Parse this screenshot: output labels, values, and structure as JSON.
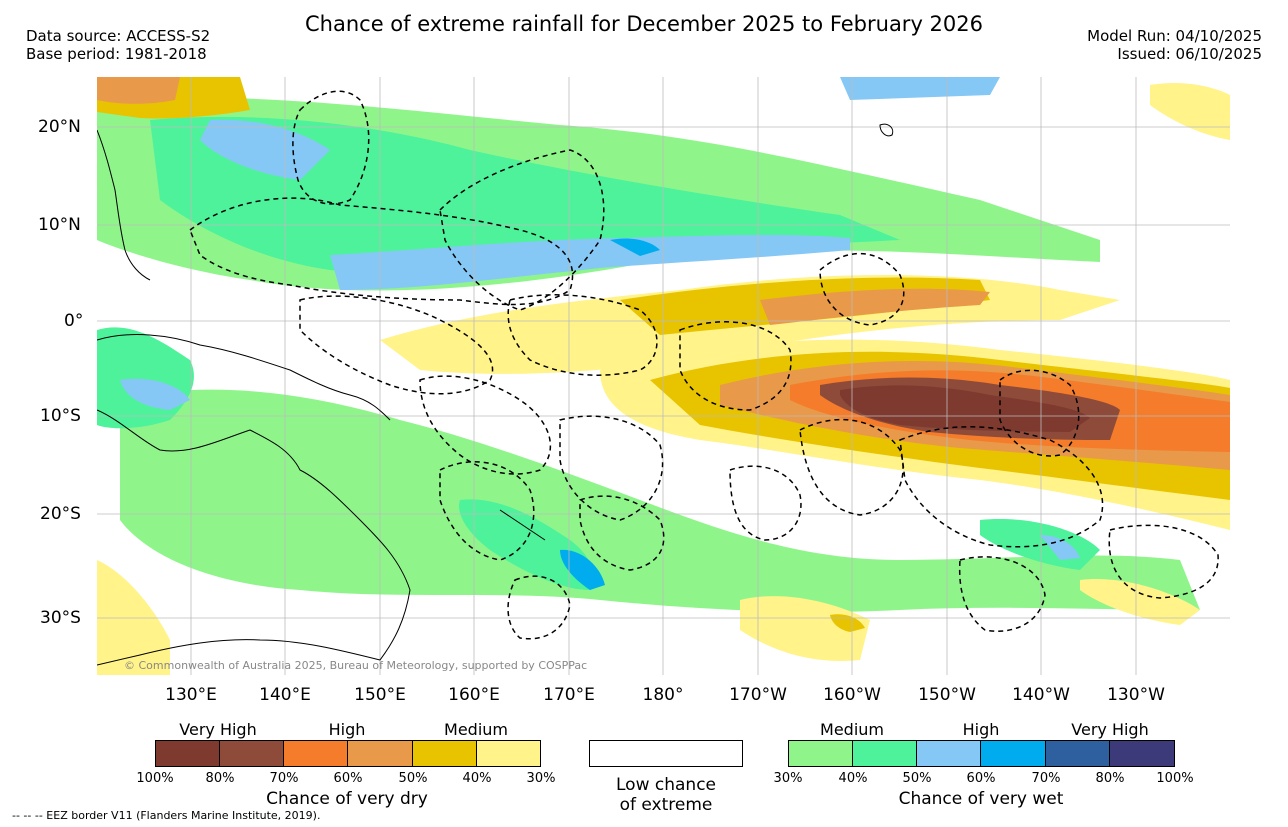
{
  "title": "Chance of extreme rainfall for December 2025 to February 2026",
  "meta_left": {
    "source": "Data source: ACCESS-S2",
    "base": "Base period: 1981-2018"
  },
  "meta_right": {
    "model_run": "Model Run: 04/10/2025",
    "issued": "Issued: 06/10/2025"
  },
  "map": {
    "region": "Western and central Pacific Ocean",
    "lon_labels": [
      "130°E",
      "140°E",
      "150°E",
      "160°E",
      "170°E",
      "180°",
      "170°W",
      "160°W",
      "150°W",
      "140°W",
      "130°W"
    ],
    "lat_labels": [
      "20°N",
      "10°N",
      "0°",
      "10°S",
      "20°S",
      "30°S"
    ],
    "copyright": "© Commonwealth of Australia 2025, Bureau of Meteorology, supported by COSPPac"
  },
  "legend": {
    "dry": {
      "title": "Chance of very dry",
      "categories": [
        "Very High",
        "High",
        "Medium"
      ],
      "ticks": [
        "100%",
        "80%",
        "70%",
        "60%",
        "50%",
        "40%",
        "30%"
      ],
      "colors": [
        "#7f3a30",
        "#8e4b3a",
        "#f47c2a",
        "#e8994a",
        "#e8c300",
        "#fff38a"
      ]
    },
    "neutral": {
      "label_line1": "Low chance",
      "label_line2": "of extreme",
      "color": "#ffffff"
    },
    "wet": {
      "title": "Chance of very wet",
      "categories": [
        "Medium",
        "High",
        "Very High"
      ],
      "ticks": [
        "30%",
        "40%",
        "50%",
        "60%",
        "70%",
        "80%",
        "100%"
      ],
      "colors": [
        "#8ff58b",
        "#4ef29a",
        "#86c8f5",
        "#00aced",
        "#2e5f9e",
        "#3c3a78"
      ]
    }
  },
  "footnote": "-- -- -- EEZ border V11 (Flanders Marine Institute, 2019)."
}
